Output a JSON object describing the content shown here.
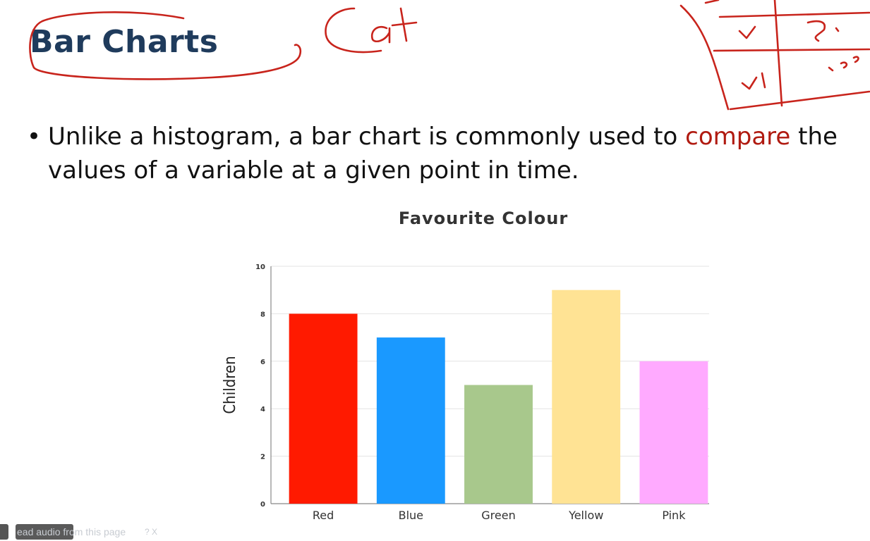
{
  "slide": {
    "title": "Bar Charts",
    "bullet_symbol": "•",
    "bullet_before": "Unlike a histogram, a bar chart is commonly used to ",
    "bullet_highlight": "compare",
    "bullet_after": " the values of a variable at a given point in time.",
    "highlight_color": "#b01a10"
  },
  "annotation": {
    "handwritten_word": "Cat",
    "ink_color": "#c8241c"
  },
  "audio_bar": {
    "label": "ead audio from this page",
    "icons": "?  X"
  },
  "chart_data": {
    "type": "bar",
    "title": "Favourite Colour",
    "xlabel": "",
    "ylabel": "Children",
    "categories": [
      "Red",
      "Blue",
      "Green",
      "Yellow",
      "Pink"
    ],
    "values": [
      8,
      7,
      5,
      9,
      6
    ],
    "colors": [
      "#ff1a00",
      "#1a99ff",
      "#a8c88c",
      "#ffe394",
      "#ffaaff"
    ],
    "ylim": [
      0,
      10
    ],
    "yticks": [
      0,
      2,
      4,
      6,
      8,
      10
    ],
    "grid": true,
    "legend": "none"
  }
}
